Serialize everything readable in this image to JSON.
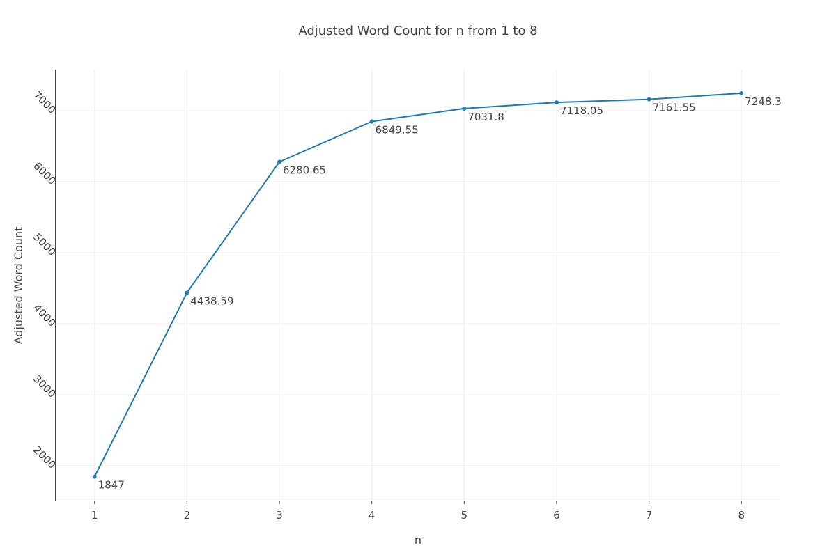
{
  "chart_data": {
    "type": "line",
    "title": "Adjusted Word Count for n from 1 to 8",
    "xlabel": "n",
    "ylabel": "Adjusted Word Count",
    "x": [
      1,
      2,
      3,
      4,
      5,
      6,
      7,
      8
    ],
    "series": [
      {
        "values": [
          1847,
          4438.59,
          6280.65,
          6849.55,
          7031.8,
          7118.05,
          7161.55,
          7248.3
        ],
        "labels": [
          "1847",
          "4438.59",
          "6280.65",
          "6849.55",
          "7031.8",
          "7118.05",
          "7161.55",
          "7248.3"
        ],
        "color": "#1f77b4"
      }
    ],
    "x_ticks": [
      "1",
      "2",
      "3",
      "4",
      "5",
      "6",
      "7",
      "8"
    ],
    "y_ticks": [
      "2000",
      "3000",
      "4000",
      "5000",
      "6000",
      "7000"
    ],
    "xlim": [
      0.58,
      8.42
    ],
    "ylim": [
      1510,
      7580
    ],
    "grid": true,
    "legend": false
  }
}
